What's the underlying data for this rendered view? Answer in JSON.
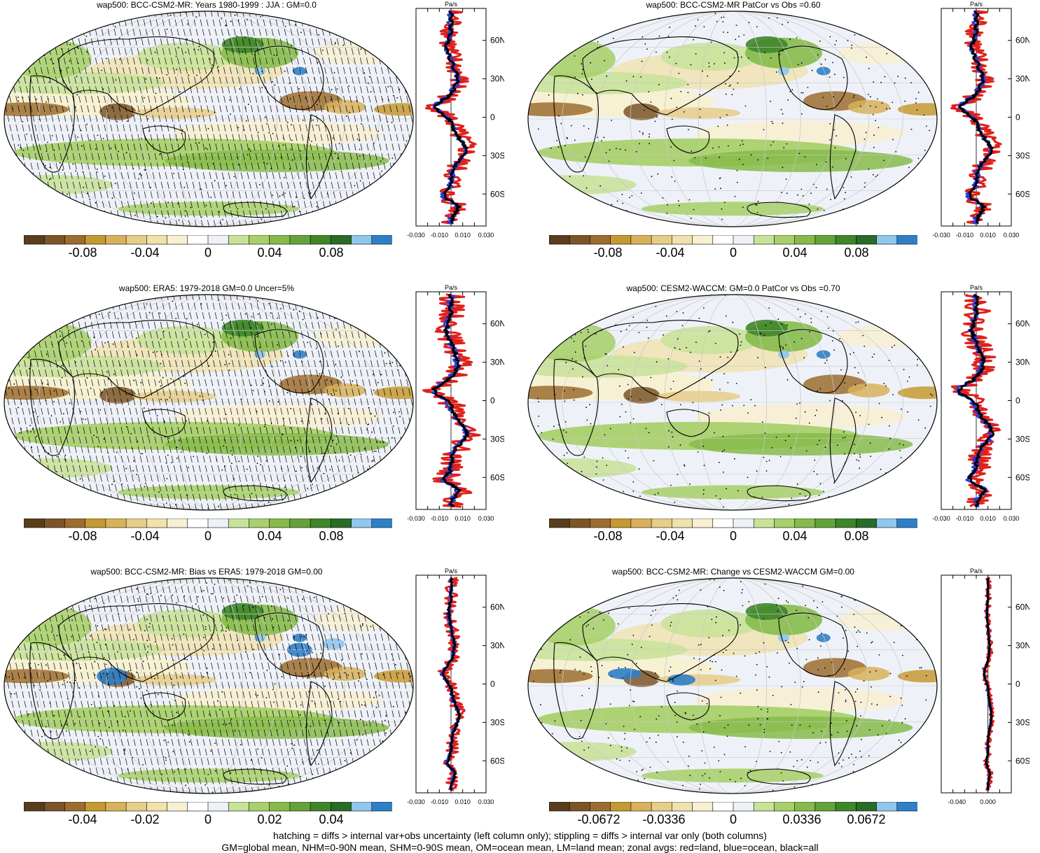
{
  "palette": [
    "#5a3d1c",
    "#7b5528",
    "#9c6d2f",
    "#c69a32",
    "#d7b25b",
    "#e6cd88",
    "#f0e1ad",
    "#f7f0d2",
    "#ffffff",
    "#eef2f7",
    "#c9e29a",
    "#a9d06c",
    "#86bb4a",
    "#64a33a",
    "#3f862b",
    "#2a6b27",
    "#8fc7ee",
    "#2f7fc7"
  ],
  "colors": {
    "land": "#e0201a",
    "ocean": "#1f3ce6",
    "all": "#000000"
  },
  "profile_unit": "Pa/s",
  "lat_ticks": [
    "60N",
    "30N",
    "0",
    "30S",
    "60S"
  ],
  "footnote": {
    "line1": "hatching = diffs > internal var+obs uncertainty (left column only); stippling = diffs > internal var only (both columns)",
    "line2": "GM=global mean, NHM=0-90N mean, SHM=0-90S mean, OM=ocean mean, LM=land mean; zonal avgs: red=land, blue=ocean, black=all"
  },
  "chart_data": [
    {
      "type": "heatmap",
      "id": "p1",
      "title": "wap500: BCC-CSM2-MR: Years 1980-1999 : JJA : GM=0.0",
      "colorbar_labels": [
        "-0.08",
        "-0.04",
        "0",
        "0.04",
        "0.08"
      ],
      "colorbar_range": [
        -0.1,
        0.1
      ],
      "profile_xticks": [
        "-0.030",
        "-0.010",
        "0.010",
        "0.030"
      ],
      "profile_xlim": [
        -0.03,
        0.03
      ],
      "hatched": true,
      "profile_seed": 1,
      "profile_amp": 0.022
    },
    {
      "type": "heatmap",
      "id": "p2",
      "title": "wap500: BCC-CSM2-MR PatCor vs Obs =0.60",
      "colorbar_labels": [
        "-0.08",
        "-0.04",
        "0",
        "0.04",
        "0.08"
      ],
      "colorbar_range": [
        -0.1,
        0.1
      ],
      "profile_xticks": [
        "-0.030",
        "-0.010",
        "0.010",
        "0.030"
      ],
      "profile_xlim": [
        -0.03,
        0.03
      ],
      "hatched": false,
      "profile_seed": 1,
      "profile_amp": 0.022
    },
    {
      "type": "heatmap",
      "id": "p3",
      "title": "wap500: ERA5: 1979-2018 GM=0.0 Uncer=5%",
      "colorbar_labels": [
        "-0.08",
        "-0.04",
        "0",
        "0.04",
        "0.08"
      ],
      "colorbar_range": [
        -0.1,
        0.1
      ],
      "profile_xticks": [
        "-0.030",
        "-0.010",
        "0.010",
        "0.030"
      ],
      "profile_xlim": [
        -0.03,
        0.03
      ],
      "hatched": true,
      "profile_seed": 2,
      "profile_amp": 0.024
    },
    {
      "type": "heatmap",
      "id": "p4",
      "title": "wap500: CESM2-WACCM: GM=0.0 PatCor vs Obs =0.70",
      "colorbar_labels": [
        "-0.08",
        "-0.04",
        "0",
        "0.04",
        "0.08"
      ],
      "colorbar_range": [
        -0.1,
        0.1
      ],
      "profile_xticks": [
        "-0.030",
        "-0.010",
        "0.010",
        "0.030"
      ],
      "profile_xlim": [
        -0.03,
        0.03
      ],
      "hatched": false,
      "profile_seed": 3,
      "profile_amp": 0.024
    },
    {
      "type": "heatmap",
      "id": "p5",
      "title": "wap500: BCC-CSM2-MR: Bias vs ERA5: 1979-2018 GM=0.00",
      "colorbar_labels": [
        "-0.04",
        "-0.02",
        "0",
        "0.02",
        "0.04"
      ],
      "colorbar_range": [
        -0.05,
        0.05
      ],
      "profile_xticks": [
        "-0.030",
        "-0.010",
        "0.010",
        "0.030"
      ],
      "profile_xlim": [
        -0.03,
        0.03
      ],
      "hatched": true,
      "profile_seed": 4,
      "profile_amp": 0.012
    },
    {
      "type": "heatmap",
      "id": "p6",
      "title": "wap500: BCC-CSM2-MR: Change vs CESM2-WACCM GM=0.00",
      "colorbar_labels": [
        "-0.0672",
        "-0.0336",
        "0",
        "0.0336",
        "0.0672"
      ],
      "colorbar_range": [
        -0.084,
        0.084
      ],
      "profile_xticks": [
        "-0.040",
        "0.000"
      ],
      "profile_xlim": [
        -0.06,
        0.03
      ],
      "hatched": false,
      "profile_seed": 5,
      "profile_amp": 0.008
    }
  ]
}
